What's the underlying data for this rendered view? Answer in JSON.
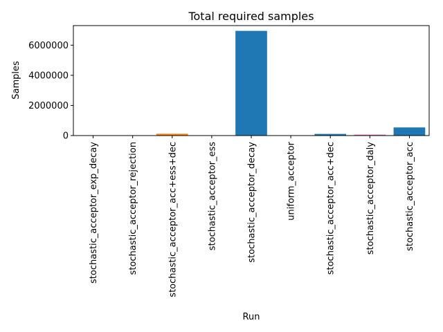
{
  "chart_data": {
    "type": "bar",
    "title": "Total required samples",
    "xlabel": "Run",
    "ylabel": "Samples",
    "ylim": [
      0,
      7300000
    ],
    "yticks": [
      0,
      2000000,
      4000000,
      6000000
    ],
    "ytick_labels": [
      "0",
      "2000000",
      "4000000",
      "6000000"
    ],
    "grid": false,
    "categories": [
      "stochastic_acceptor_exp_decay",
      "stochastic_acceptor_rejection",
      "stochastic_acceptor_acc+ess+dec",
      "stochastic_acceptor_ess",
      "stochastic_acceptor_decay",
      "uniform_acceptor",
      "stochastic_acceptor_acc+dec",
      "stochastic_acceptor_daly",
      "stochastic_acceptor_acc"
    ],
    "values": [
      20000,
      20000,
      120000,
      20000,
      6950000,
      20000,
      110000,
      65000,
      540000
    ],
    "colors": [
      "#17becf",
      "#ff7f0e",
      "#ff7f0e",
      "#17becf",
      "#1f77b4",
      "#d62728",
      "#1f77b4",
      "#e377c2",
      "#1f77b4"
    ]
  }
}
